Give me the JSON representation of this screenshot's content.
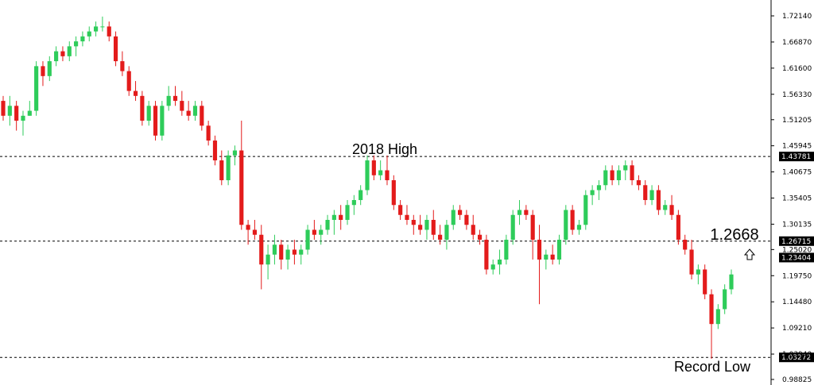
{
  "chart_data": {
    "type": "candlestick",
    "y_axis_ticks": [
      "1.72140",
      "1.66870",
      "1.61600",
      "1.56330",
      "1.51205",
      "1.45945",
      "1.40675",
      "1.35405",
      "1.30135",
      "1.25020",
      "1.19750",
      "1.14480",
      "1.09210",
      "1.03940",
      "0.98825"
    ],
    "ylim": [
      0.98825,
      1.7214
    ],
    "levels": [
      {
        "label": "1.43781",
        "value": 1.43781,
        "style": "dashed"
      },
      {
        "label": "1.26715",
        "value": 1.26715,
        "style": "dashed"
      },
      {
        "label": "1.03272",
        "value": 1.03272,
        "style": "dashed"
      }
    ],
    "current_price": {
      "label": "1.23404",
      "value": 1.23404
    },
    "annotations": [
      {
        "text": "2018 High"
      },
      {
        "text": "1.2668"
      },
      {
        "text": "Record Low"
      }
    ],
    "colors": {
      "up": "#2ecc5a",
      "down": "#e31b1b",
      "line": "#000000"
    },
    "candles": [
      [
        1.55,
        1.56,
        1.51,
        1.52
      ],
      [
        1.52,
        1.56,
        1.5,
        1.54
      ],
      [
        1.54,
        1.55,
        1.49,
        1.51
      ],
      [
        1.51,
        1.53,
        1.48,
        1.52
      ],
      [
        1.52,
        1.55,
        1.52,
        1.53
      ],
      [
        1.53,
        1.63,
        1.52,
        1.62
      ],
      [
        1.62,
        1.63,
        1.58,
        1.6
      ],
      [
        1.6,
        1.64,
        1.59,
        1.63
      ],
      [
        1.63,
        1.66,
        1.62,
        1.65
      ],
      [
        1.65,
        1.66,
        1.63,
        1.64
      ],
      [
        1.64,
        1.67,
        1.63,
        1.66
      ],
      [
        1.66,
        1.68,
        1.64,
        1.67
      ],
      [
        1.67,
        1.69,
        1.66,
        1.68
      ],
      [
        1.68,
        1.7,
        1.67,
        1.69
      ],
      [
        1.69,
        1.71,
        1.68,
        1.7
      ],
      [
        1.7,
        1.72,
        1.69,
        1.7
      ],
      [
        1.7,
        1.71,
        1.67,
        1.68
      ],
      [
        1.68,
        1.69,
        1.62,
        1.63
      ],
      [
        1.63,
        1.65,
        1.6,
        1.61
      ],
      [
        1.61,
        1.62,
        1.56,
        1.57
      ],
      [
        1.57,
        1.59,
        1.55,
        1.56
      ],
      [
        1.56,
        1.57,
        1.5,
        1.51
      ],
      [
        1.51,
        1.55,
        1.5,
        1.54
      ],
      [
        1.54,
        1.55,
        1.47,
        1.48
      ],
      [
        1.48,
        1.55,
        1.47,
        1.54
      ],
      [
        1.54,
        1.58,
        1.53,
        1.56
      ],
      [
        1.56,
        1.58,
        1.54,
        1.55
      ],
      [
        1.55,
        1.57,
        1.52,
        1.53
      ],
      [
        1.53,
        1.55,
        1.51,
        1.52
      ],
      [
        1.52,
        1.55,
        1.51,
        1.54
      ],
      [
        1.54,
        1.55,
        1.49,
        1.5
      ],
      [
        1.5,
        1.51,
        1.46,
        1.47
      ],
      [
        1.47,
        1.48,
        1.42,
        1.43
      ],
      [
        1.43,
        1.45,
        1.38,
        1.39
      ],
      [
        1.39,
        1.45,
        1.38,
        1.44
      ],
      [
        1.44,
        1.46,
        1.42,
        1.45
      ],
      [
        1.45,
        1.51,
        1.29,
        1.3
      ],
      [
        1.3,
        1.31,
        1.26,
        1.29
      ],
      [
        1.29,
        1.31,
        1.27,
        1.28
      ],
      [
        1.28,
        1.3,
        1.17,
        1.22
      ],
      [
        1.22,
        1.26,
        1.19,
        1.24
      ],
      [
        1.24,
        1.28,
        1.22,
        1.26
      ],
      [
        1.26,
        1.27,
        1.21,
        1.23
      ],
      [
        1.23,
        1.26,
        1.21,
        1.25
      ],
      [
        1.25,
        1.27,
        1.22,
        1.24
      ],
      [
        1.24,
        1.26,
        1.22,
        1.25
      ],
      [
        1.25,
        1.3,
        1.24,
        1.29
      ],
      [
        1.29,
        1.31,
        1.27,
        1.28
      ],
      [
        1.28,
        1.3,
        1.26,
        1.29
      ],
      [
        1.29,
        1.32,
        1.28,
        1.31
      ],
      [
        1.31,
        1.33,
        1.28,
        1.32
      ],
      [
        1.32,
        1.34,
        1.29,
        1.31
      ],
      [
        1.31,
        1.35,
        1.3,
        1.34
      ],
      [
        1.34,
        1.36,
        1.32,
        1.35
      ],
      [
        1.35,
        1.38,
        1.34,
        1.37
      ],
      [
        1.37,
        1.44,
        1.36,
        1.43
      ],
      [
        1.43,
        1.44,
        1.39,
        1.4
      ],
      [
        1.4,
        1.43,
        1.39,
        1.41
      ],
      [
        1.41,
        1.44,
        1.38,
        1.39
      ],
      [
        1.39,
        1.4,
        1.33,
        1.34
      ],
      [
        1.34,
        1.35,
        1.31,
        1.32
      ],
      [
        1.32,
        1.34,
        1.3,
        1.31
      ],
      [
        1.31,
        1.32,
        1.28,
        1.3
      ],
      [
        1.3,
        1.32,
        1.28,
        1.29
      ],
      [
        1.29,
        1.32,
        1.27,
        1.31
      ],
      [
        1.31,
        1.33,
        1.27,
        1.28
      ],
      [
        1.28,
        1.3,
        1.26,
        1.27
      ],
      [
        1.27,
        1.31,
        1.25,
        1.3
      ],
      [
        1.3,
        1.34,
        1.29,
        1.33
      ],
      [
        1.33,
        1.34,
        1.31,
        1.32
      ],
      [
        1.32,
        1.33,
        1.29,
        1.3
      ],
      [
        1.3,
        1.32,
        1.27,
        1.28
      ],
      [
        1.28,
        1.29,
        1.26,
        1.27
      ],
      [
        1.27,
        1.28,
        1.2,
        1.21
      ],
      [
        1.21,
        1.23,
        1.2,
        1.22
      ],
      [
        1.22,
        1.25,
        1.2,
        1.23
      ],
      [
        1.23,
        1.28,
        1.22,
        1.27
      ],
      [
        1.27,
        1.33,
        1.26,
        1.32
      ],
      [
        1.32,
        1.35,
        1.3,
        1.33
      ],
      [
        1.33,
        1.34,
        1.31,
        1.32
      ],
      [
        1.32,
        1.33,
        1.23,
        1.27
      ],
      [
        1.27,
        1.3,
        1.14,
        1.23
      ],
      [
        1.23,
        1.25,
        1.21,
        1.24
      ],
      [
        1.24,
        1.26,
        1.22,
        1.23
      ],
      [
        1.23,
        1.28,
        1.22,
        1.27
      ],
      [
        1.27,
        1.34,
        1.26,
        1.33
      ],
      [
        1.33,
        1.34,
        1.28,
        1.29
      ],
      [
        1.29,
        1.31,
        1.28,
        1.3
      ],
      [
        1.3,
        1.37,
        1.29,
        1.36
      ],
      [
        1.36,
        1.38,
        1.34,
        1.37
      ],
      [
        1.37,
        1.39,
        1.35,
        1.38
      ],
      [
        1.38,
        1.42,
        1.37,
        1.41
      ],
      [
        1.41,
        1.42,
        1.38,
        1.39
      ],
      [
        1.39,
        1.42,
        1.38,
        1.41
      ],
      [
        1.41,
        1.43,
        1.39,
        1.42
      ],
      [
        1.42,
        1.43,
        1.38,
        1.39
      ],
      [
        1.39,
        1.4,
        1.37,
        1.38
      ],
      [
        1.38,
        1.39,
        1.34,
        1.35
      ],
      [
        1.35,
        1.38,
        1.34,
        1.37
      ],
      [
        1.37,
        1.38,
        1.32,
        1.33
      ],
      [
        1.33,
        1.35,
        1.32,
        1.34
      ],
      [
        1.34,
        1.36,
        1.31,
        1.32
      ],
      [
        1.32,
        1.33,
        1.26,
        1.27
      ],
      [
        1.27,
        1.28,
        1.24,
        1.25
      ],
      [
        1.25,
        1.27,
        1.19,
        1.2
      ],
      [
        1.2,
        1.22,
        1.18,
        1.21
      ],
      [
        1.21,
        1.22,
        1.15,
        1.16
      ],
      [
        1.16,
        1.17,
        1.03,
        1.1
      ],
      [
        1.1,
        1.14,
        1.09,
        1.13
      ],
      [
        1.13,
        1.18,
        1.12,
        1.17
      ],
      [
        1.17,
        1.21,
        1.16,
        1.2
      ]
    ]
  }
}
